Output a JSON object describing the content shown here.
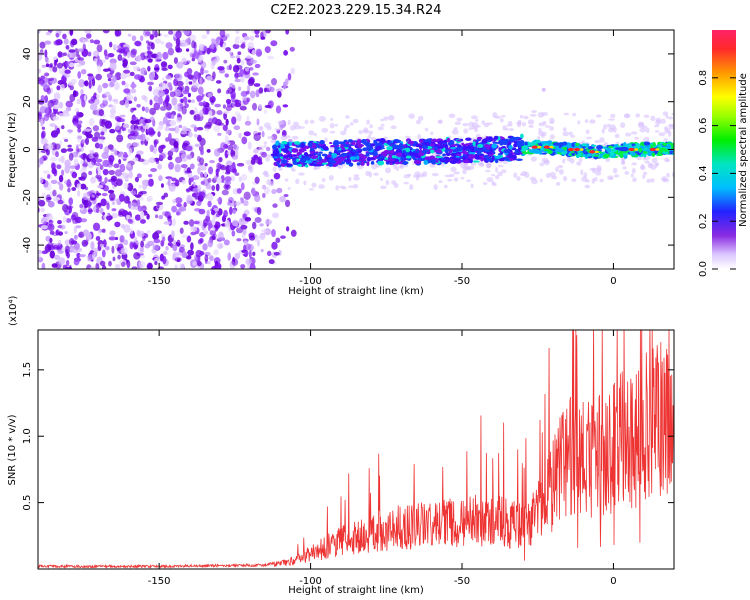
{
  "title": "C2E2.2023.229.15.34.R24",
  "chart_data": [
    {
      "type": "heatmap",
      "title": "C2E2.2023.229.15.34.R24",
      "xlabel": "Height of straight line (km)",
      "ylabel": "Frequency (Hz)",
      "xlim": [
        -190,
        20
      ],
      "ylim": [
        -50,
        50
      ],
      "x_ticks": [
        -150,
        -100,
        -50,
        0
      ],
      "y_ticks": [
        -40,
        -20,
        0,
        20,
        40
      ],
      "colorbar": {
        "label": "Normalized spectral amplitude",
        "range": [
          0,
          1
        ],
        "ticks": [
          0.0,
          0.2,
          0.4,
          0.6,
          0.8
        ],
        "colormap": "rainbow"
      },
      "features": {
        "noise_region_x": [
          -190,
          -110
        ],
        "signal_band_center_hz": [
          [
            -112,
            -2
          ],
          [
            -100,
            -2
          ],
          [
            -80,
            -1
          ],
          [
            -60,
            -1
          ],
          [
            -40,
            0
          ],
          [
            -25,
            1
          ],
          [
            -15,
            0
          ],
          [
            -5,
            -1
          ],
          [
            10,
            0
          ],
          [
            20,
            0
          ]
        ]
      }
    },
    {
      "type": "line",
      "xlabel": "Height of straight line (km)",
      "ylabel": "SNR (10 * v/v)",
      "y_multiplier": "(x10⁴)",
      "xlim": [
        -190,
        20
      ],
      "ylim": [
        0,
        18000
      ],
      "x_ticks": [
        -150,
        -100,
        -50,
        0
      ],
      "y_ticks": [
        5000,
        10000,
        15000
      ],
      "y_tick_labels": [
        "0.5",
        "1.0",
        "1.5"
      ],
      "series": [
        {
          "color": "#ee3333",
          "envelope_x": [
            -190,
            -150,
            -115,
            -105,
            -100,
            -90,
            -80,
            -70,
            -60,
            -50,
            -40,
            -30,
            -25,
            -20,
            -15,
            -10,
            -5,
            0,
            5,
            10,
            15,
            20
          ],
          "envelope_y": [
            200,
            200,
            300,
            800,
            1500,
            2700,
            3500,
            4000,
            4200,
            4500,
            4800,
            4000,
            5500,
            8000,
            11000,
            10500,
            11000,
            12000,
            12500,
            13500,
            14500,
            14000
          ]
        }
      ]
    }
  ]
}
